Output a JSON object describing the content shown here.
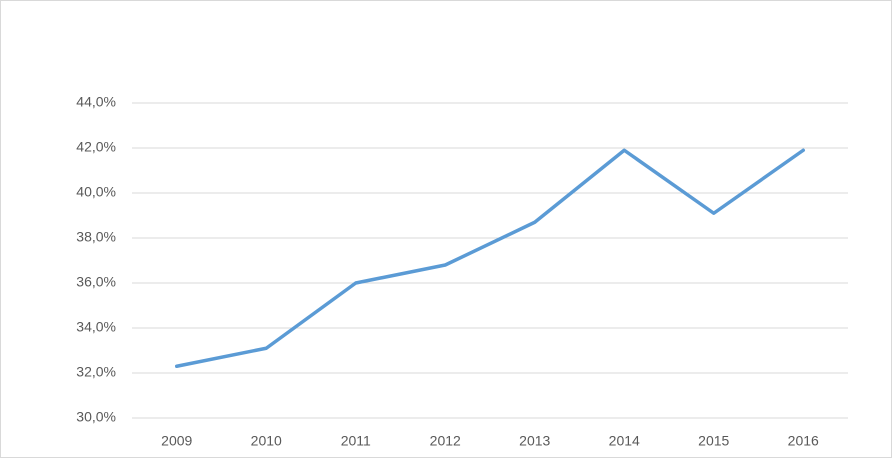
{
  "chart_data": {
    "type": "line",
    "categories": [
      "2009",
      "2010",
      "2011",
      "2012",
      "2013",
      "2014",
      "2015",
      "2016"
    ],
    "series": [
      {
        "color": "#5b9bd5",
        "values": [
          32.3,
          33.1,
          36.0,
          36.8,
          38.7,
          41.9,
          39.1,
          41.9
        ]
      }
    ],
    "ylim": [
      30,
      44
    ],
    "yticks": [
      {
        "value": 30,
        "label": "30,0%"
      },
      {
        "value": 32,
        "label": "32,0%"
      },
      {
        "value": 34,
        "label": "34,0%"
      },
      {
        "value": 36,
        "label": "36,0%"
      },
      {
        "value": 38,
        "label": "38,0%"
      },
      {
        "value": 40,
        "label": "40,0%"
      },
      {
        "value": 42,
        "label": "42,0%"
      },
      {
        "value": 44,
        "label": "44,0%"
      }
    ],
    "grid": true
  }
}
